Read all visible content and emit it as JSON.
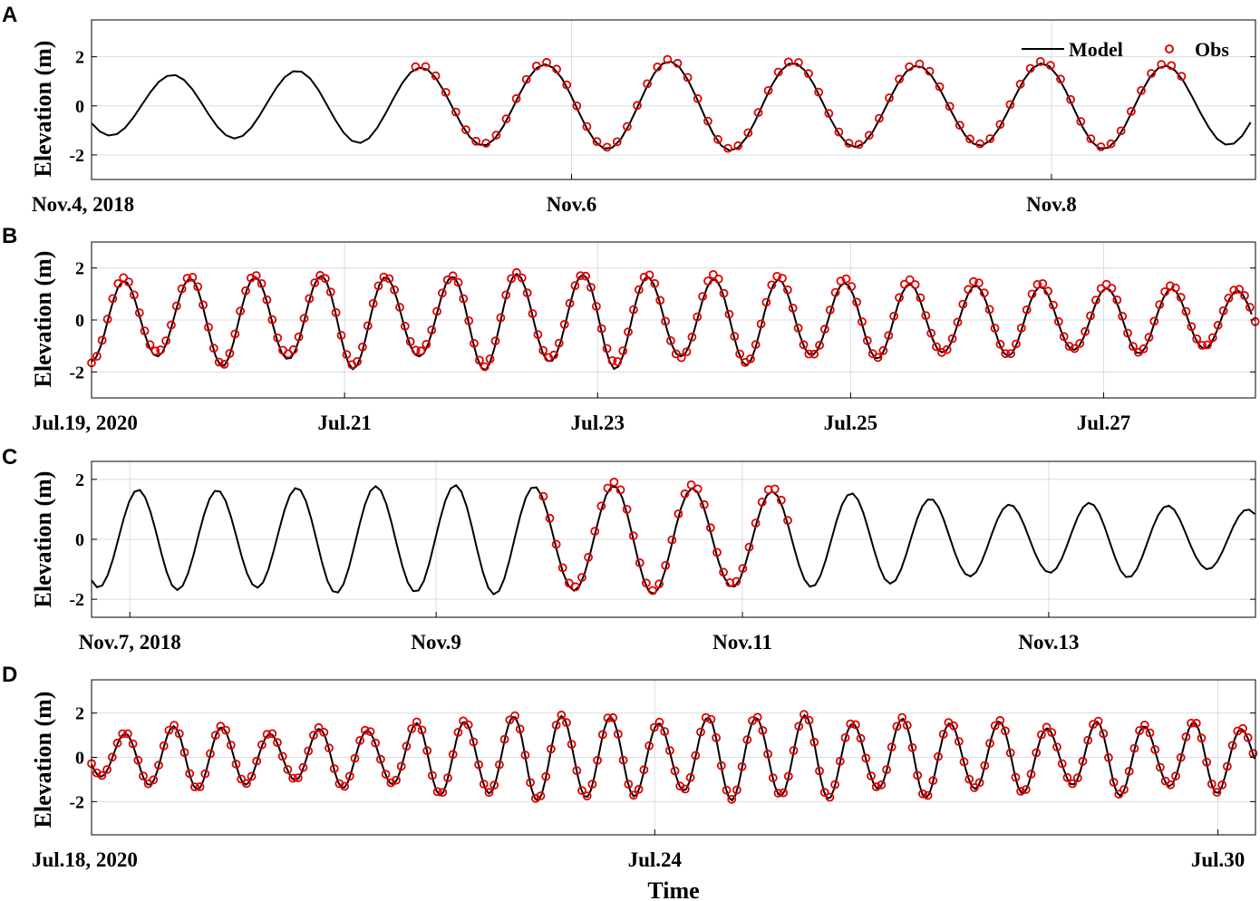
{
  "figure": {
    "xlabel": "Time",
    "legend": {
      "model_label": "Model",
      "obs_label": "Obs",
      "position": "top-right (panel A)"
    },
    "colors": {
      "model": "#000000",
      "obs": "#e00000",
      "grid": "#dcdcdc",
      "axes": "#000000"
    }
  },
  "chart_data": [
    {
      "panel": "A",
      "type": "line",
      "ylabel": "Elevation (m)",
      "ylim": [
        -3,
        3.5
      ],
      "yticks": [
        -2,
        0,
        2
      ],
      "xlim_days": [
        0,
        4.85
      ],
      "xticks": [
        {
          "day": 0,
          "label": "Nov.4, 2018"
        },
        {
          "day": 2,
          "label": "Nov.6"
        },
        {
          "day": 4,
          "label": "Nov.8"
        }
      ],
      "grid": true,
      "series": [
        {
          "name": "Model",
          "style": "line",
          "amp": [
            1.2,
            1.3,
            1.5,
            1.6,
            1.75,
            1.85,
            1.7,
            1.6,
            1.8,
            1.55,
            1.85,
            1.6
          ],
          "phase": 2.2,
          "shift": 0,
          "obs_range_days": null
        },
        {
          "name": "Obs",
          "style": "circle",
          "amp": [
            1.2,
            1.3,
            1.5,
            1.6,
            1.75,
            1.85,
            1.7,
            1.6,
            1.8,
            1.55,
            1.85,
            1.6
          ],
          "phase": 2.2,
          "shift": 0.08,
          "obs_range_days": [
            1.35,
            4.55
          ]
        }
      ]
    },
    {
      "panel": "B",
      "type": "line",
      "ylabel": "Elevation (m)",
      "ylim": [
        -3,
        3
      ],
      "yticks": [
        -2,
        0,
        2
      ],
      "xlim_days": [
        0,
        9.2
      ],
      "xticks": [
        {
          "day": 0,
          "label": "Jul.19, 2020"
        },
        {
          "day": 2,
          "label": "Jul.21"
        },
        {
          "day": 4,
          "label": "Jul.23"
        },
        {
          "day": 6,
          "label": "Jul.25"
        },
        {
          "day": 8,
          "label": "Jul.27"
        }
      ],
      "grid": true,
      "series": [
        {
          "name": "Model",
          "style": "line",
          "amp": [
            1.6,
            1.4,
            1.8,
            1.5,
            1.9,
            1.4,
            1.95,
            1.6,
            1.9,
            1.4,
            1.75,
            1.35,
            1.5,
            1.25,
            1.4,
            1.15,
            1.3,
            1.1,
            1.15,
            1.0,
            1.05
          ],
          "phase": 3.14,
          "shift": 0,
          "obs_range_days": null
        },
        {
          "name": "Obs",
          "style": "circle",
          "amp": [
            1.75,
            1.3,
            1.85,
            1.4,
            1.85,
            1.3,
            1.9,
            1.55,
            1.75,
            1.55,
            1.75,
            1.45,
            1.55,
            1.35,
            1.45,
            1.2,
            1.35,
            1.1,
            1.1,
            1.0,
            1.0
          ],
          "phase": 3.14,
          "shift": 0.1,
          "obs_range_days": [
            0,
            9.2
          ]
        }
      ]
    },
    {
      "panel": "C",
      "type": "line",
      "ylabel": "Elevation (m)",
      "ylim": [
        -2.6,
        2.6
      ],
      "yticks": [
        -2,
        0,
        2
      ],
      "xlim_days": [
        0,
        7.6
      ],
      "xticks": [
        {
          "day": 0.25,
          "label": "Nov.7, 2018"
        },
        {
          "day": 2.25,
          "label": "Nov.9"
        },
        {
          "day": 4.25,
          "label": "Nov.11"
        },
        {
          "day": 6.25,
          "label": "Nov.13"
        }
      ],
      "grid": true,
      "series": [
        {
          "name": "Model",
          "style": "line",
          "amp": [
            1.6,
            1.7,
            1.6,
            1.8,
            1.75,
            1.85,
            1.7,
            1.85,
            1.6,
            1.6,
            1.5,
            1.25,
            1.1,
            1.3,
            1.0,
            1.0,
            0.9,
            0.85
          ],
          "phase": 2.6,
          "shift": 0,
          "obs_range_days": null
        },
        {
          "name": "Obs",
          "style": "circle",
          "amp": [
            1.6,
            1.7,
            1.6,
            1.8,
            1.75,
            1.85,
            1.7,
            1.85,
            1.6,
            1.6,
            1.5,
            1.25,
            1.1,
            1.3,
            1.0,
            1.0,
            0.9,
            0.85
          ],
          "phase": 2.6,
          "shift": 0.12,
          "obs_range_days": [
            2.95,
            4.55
          ]
        }
      ]
    },
    {
      "panel": "D",
      "type": "line",
      "ylabel": "Elevation (m)",
      "ylim": [
        -3.5,
        3.5
      ],
      "yticks": [
        -2,
        0,
        2
      ],
      "xlim_days": [
        0,
        12.4
      ],
      "xticks": [
        {
          "day": 0,
          "label": "Jul.18, 2020"
        },
        {
          "day": 6,
          "label": "Jul.24"
        },
        {
          "day": 12,
          "label": "Jul.30"
        }
      ],
      "grid": true,
      "series": [
        {
          "name": "Model",
          "style": "line",
          "amp": [
            0.8,
            1.2,
            1.5,
            1.3,
            0.95,
            1.45,
            1.1,
            1.75,
            1.55,
            2.0,
            1.8,
            1.85,
            1.4,
            2.0,
            1.7,
            2.0,
            1.3,
            1.95,
            1.35,
            1.75,
            1.1,
            1.85,
            1.2,
            1.75,
            1.05,
            1.5,
            1.0,
            1.2,
            0.95,
            1.3,
            0.9,
            1.1,
            0.85,
            0.95,
            0.75,
            1.0,
            0.7,
            0.7
          ],
          "phase": 2.0,
          "shift": 0,
          "obs_range_days": null
        },
        {
          "name": "Obs",
          "style": "circle",
          "amp": [
            0.8,
            1.2,
            1.5,
            1.3,
            0.95,
            1.45,
            1.1,
            1.75,
            1.55,
            2.0,
            1.8,
            1.85,
            1.4,
            2.0,
            1.7,
            2.0,
            1.3,
            1.95,
            1.35,
            1.75,
            1.1,
            1.85,
            1.2,
            1.75,
            1.05,
            1.5,
            1.0,
            1.2,
            0.95,
            1.3,
            0.9,
            1.1,
            0.85,
            0.95,
            0.75,
            1.0,
            0.7,
            0.7
          ],
          "phase": 2.0,
          "shift": 0.05,
          "obs_range_days": [
            0,
            12.4
          ]
        }
      ]
    }
  ],
  "panels_letters": [
    "A",
    "B",
    "C",
    "D"
  ]
}
